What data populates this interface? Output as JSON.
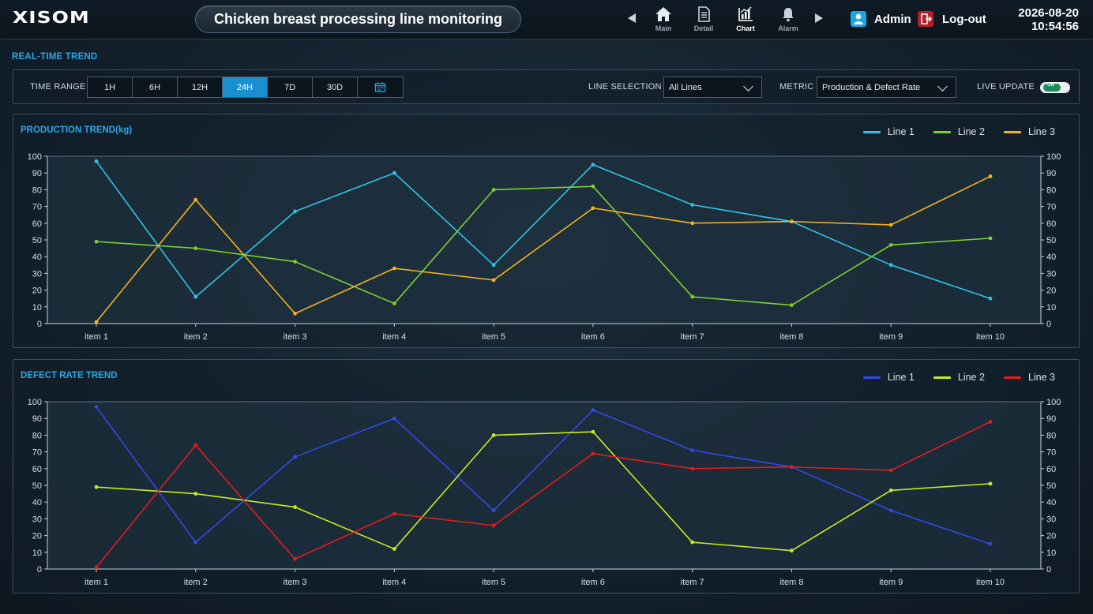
{
  "header": {
    "logo": "XISOM",
    "title": "Chicken breast processing line monitoring",
    "nav": [
      {
        "label": "Main",
        "icon": "home-icon"
      },
      {
        "label": "Detail",
        "icon": "document-icon"
      },
      {
        "label": "Chart",
        "icon": "chart-icon"
      },
      {
        "label": "Alarm",
        "icon": "bell-icon"
      }
    ],
    "active_nav": "Chart",
    "user": "Admin",
    "logout": "Log-out",
    "date": "2026-08-20",
    "time": "10:54:56"
  },
  "section_title": "REAL-TIME TREND",
  "filters": {
    "time_range_label": "TIME RANGE",
    "ranges": [
      "1H",
      "6H",
      "12H",
      "24H",
      "7D",
      "30D"
    ],
    "active_range": "24H",
    "line_selection_label": "LINE SELECTION",
    "line_selection_value": "All Lines",
    "metric_label": "METRIC",
    "metric_value": "Production & Defect Rate",
    "live_update_label": "LIVE UPDATE",
    "live_update_state": "ON"
  },
  "chart_data": [
    {
      "type": "line",
      "title": "PRODUCTION TREND(kg)",
      "categories": [
        "item 1",
        "item 2",
        "item 3",
        "item 4",
        "item 5",
        "item 6",
        "item 7",
        "item 8",
        "item 9",
        "item 10"
      ],
      "ylim": [
        0,
        100
      ],
      "yticks": [
        0,
        10,
        20,
        30,
        40,
        50,
        60,
        70,
        80,
        90,
        100
      ],
      "legend_position": "top-right",
      "series": [
        {
          "name": "Line 1",
          "color": "#2fc4e6",
          "values": [
            97,
            16,
            67,
            90,
            35,
            95,
            71,
            61,
            35,
            15
          ]
        },
        {
          "name": "Line 2",
          "color": "#7ccf32",
          "values": [
            49,
            45,
            37,
            12,
            80,
            82,
            16,
            11,
            47,
            51
          ]
        },
        {
          "name": "Line 3",
          "color": "#f2b21d",
          "values": [
            1,
            74,
            6,
            33,
            26,
            69,
            60,
            61,
            59,
            88
          ]
        }
      ]
    },
    {
      "type": "line",
      "title": "DEFECT RATE TREND",
      "categories": [
        "item 1",
        "item 2",
        "item 3",
        "item 4",
        "item 5",
        "item 6",
        "item 7",
        "item 8",
        "item 9",
        "item 10"
      ],
      "ylim": [
        0,
        100
      ],
      "yticks": [
        0,
        10,
        20,
        30,
        40,
        50,
        60,
        70,
        80,
        90,
        100
      ],
      "legend_position": "top-right",
      "series": [
        {
          "name": "Line 1",
          "color": "#2f4ae6",
          "values": [
            97,
            16,
            67,
            90,
            35,
            95,
            71,
            61,
            35,
            15
          ]
        },
        {
          "name": "Line 2",
          "color": "#c8ec1e",
          "values": [
            49,
            45,
            37,
            12,
            80,
            82,
            16,
            11,
            47,
            51
          ]
        },
        {
          "name": "Line 3",
          "color": "#e31c1c",
          "values": [
            1,
            74,
            6,
            33,
            26,
            69,
            60,
            61,
            59,
            88
          ]
        }
      ]
    }
  ]
}
